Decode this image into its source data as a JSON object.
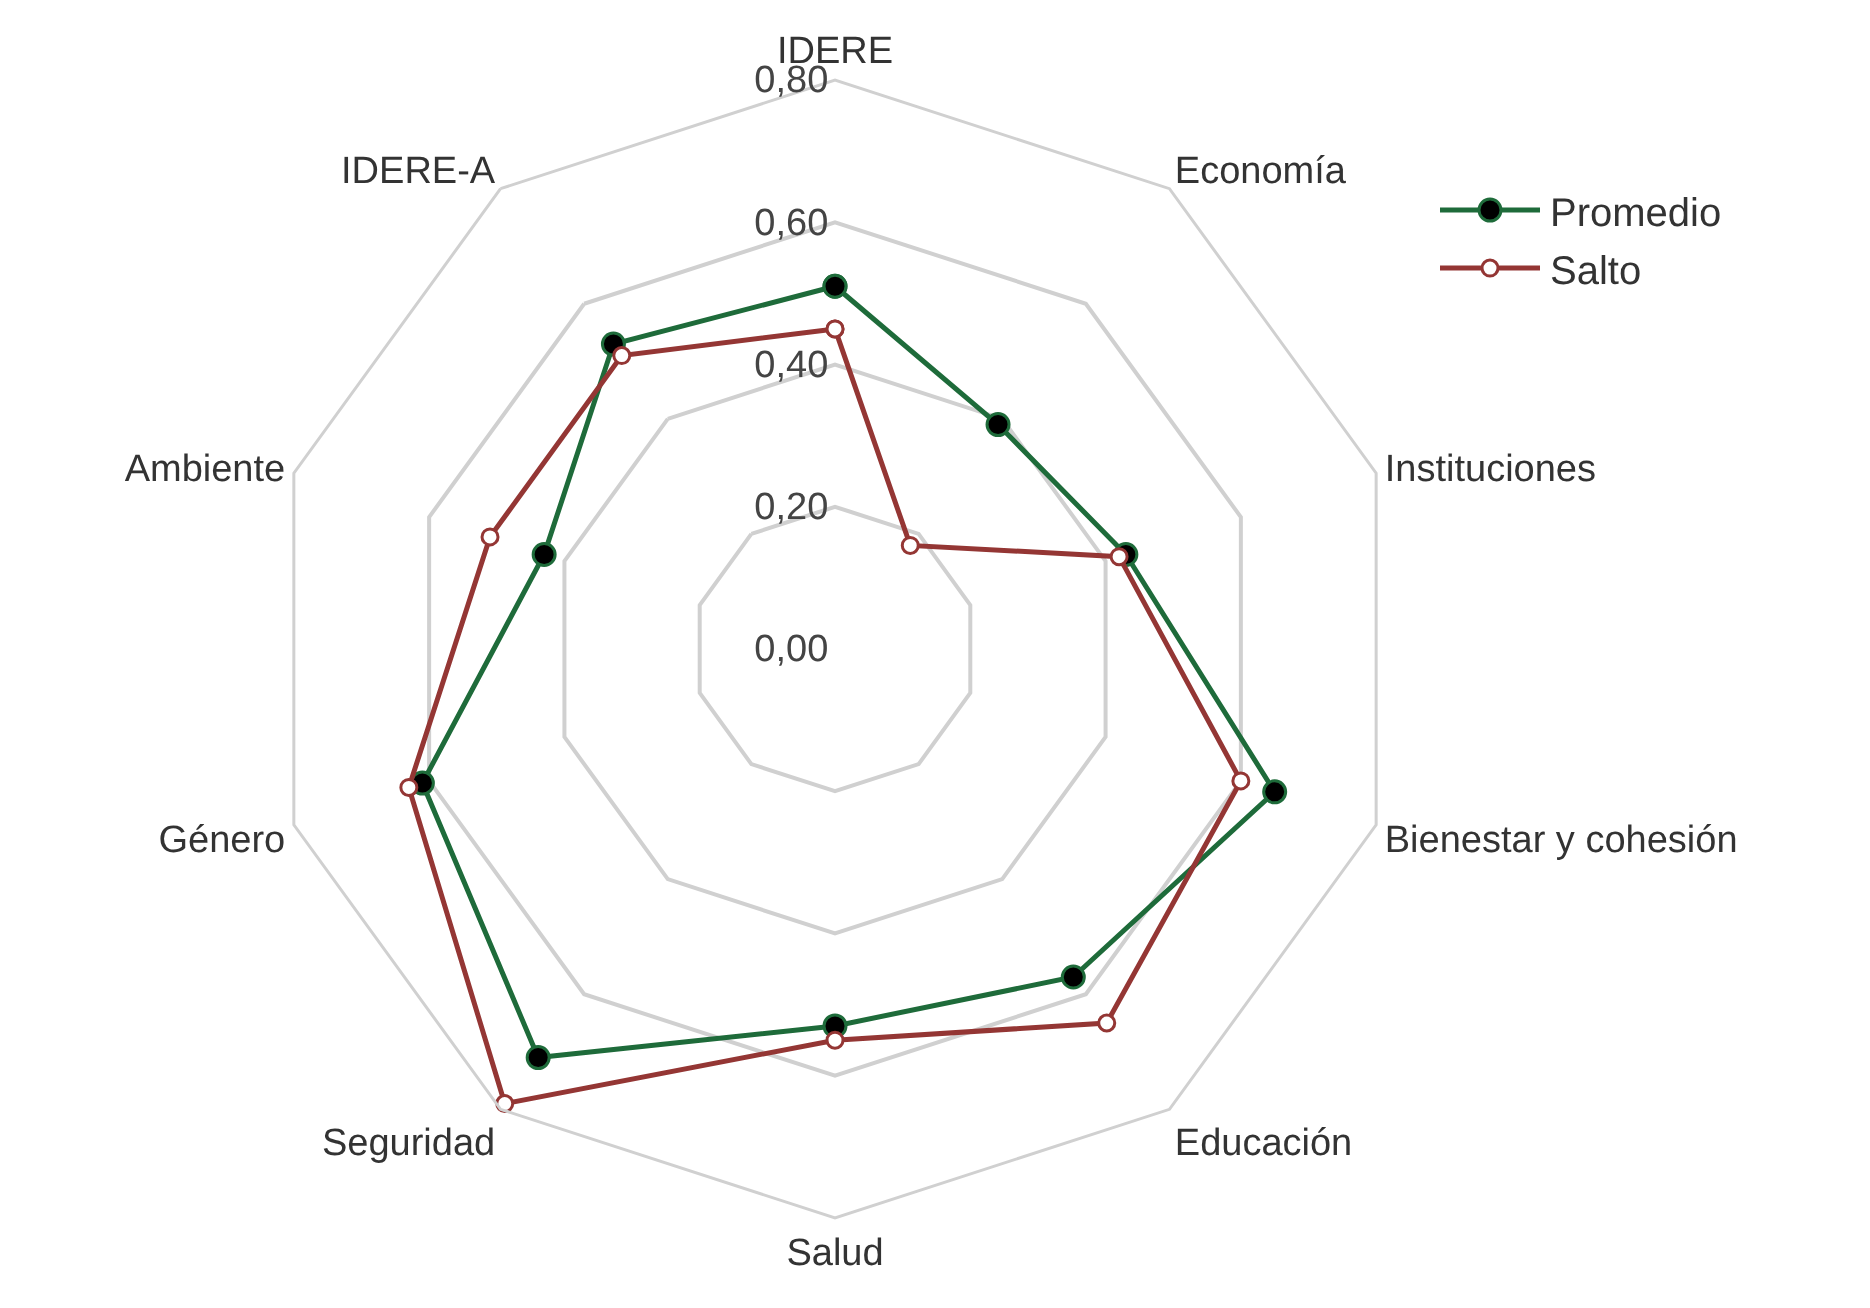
{
  "chart_data": {
    "type": "radar",
    "categories": [
      "IDERE",
      "Economía",
      "Instituciones",
      "Bienestar y cohesión",
      "Educación",
      "Salud",
      "Seguridad",
      "Género",
      "Ambiente",
      "IDERE-A"
    ],
    "series": [
      {
        "name": "Promedio",
        "color": "#1e6b3a",
        "values": [
          0.51,
          0.39,
          0.43,
          0.65,
          0.57,
          0.53,
          0.71,
          0.61,
          0.43,
          0.53
        ]
      },
      {
        "name": "Salto",
        "color": "#943634",
        "values": [
          0.45,
          0.18,
          0.42,
          0.6,
          0.65,
          0.55,
          0.79,
          0.63,
          0.51,
          0.51
        ]
      }
    ],
    "ylim": [
      0,
      0.8
    ],
    "yticks": [
      {
        "value": 0,
        "label": "0,00"
      },
      {
        "value": 0.2,
        "label": "0,20"
      },
      {
        "value": 0.4,
        "label": "0,40"
      },
      {
        "value": 0.6,
        "label": "0,60"
      },
      {
        "value": 0.8,
        "label": "0,80"
      }
    ],
    "grid": true,
    "legend": "top right",
    "marker": "circle"
  }
}
